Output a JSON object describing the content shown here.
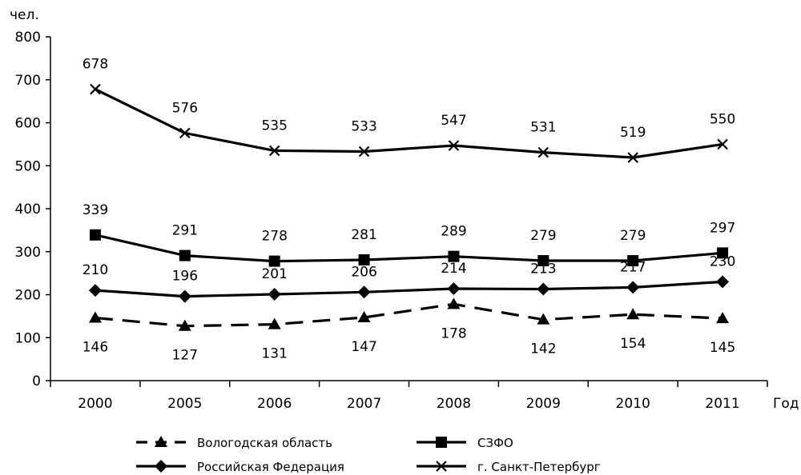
{
  "chart_data": {
    "type": "line",
    "categories": [
      "2000",
      "2005",
      "2006",
      "2007",
      "2008",
      "2009",
      "2010",
      "2011"
    ],
    "ylim": [
      0,
      800
    ],
    "yticks": [
      0,
      100,
      200,
      300,
      400,
      500,
      600,
      700,
      800
    ],
    "ylabel": "чел.",
    "xlabel": "Год",
    "grid": false,
    "legend_position": "bottom",
    "series": [
      {
        "name": "Вологодская область",
        "values": [
          146,
          127,
          131,
          147,
          178,
          142,
          154,
          145
        ],
        "marker": "triangle",
        "line_style": "dashed",
        "color": "#000000"
      },
      {
        "name": "СЗФО",
        "values": [
          339,
          291,
          278,
          281,
          289,
          279,
          279,
          297
        ],
        "marker": "square",
        "line_style": "solid",
        "color": "#000000"
      },
      {
        "name": "Российская Федерация",
        "values": [
          210,
          196,
          201,
          206,
          214,
          213,
          217,
          230
        ],
        "marker": "diamond",
        "line_style": "solid",
        "color": "#000000"
      },
      {
        "name": "г. Санкт-Петербург",
        "values": [
          678,
          576,
          535,
          533,
          547,
          531,
          519,
          550
        ],
        "marker": "x",
        "line_style": "solid",
        "color": "#000000"
      }
    ]
  }
}
